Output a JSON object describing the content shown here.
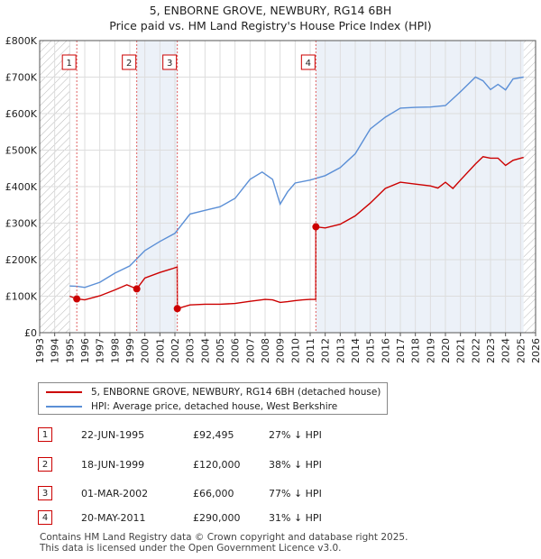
{
  "title_line1": "5, ENBORNE GROVE, NEWBURY, RG14 6BH",
  "title_line2": "Price paid vs. HM Land Registry's House Price Index (HPI)",
  "colors": {
    "property": "#cc0000",
    "hpi": "#5b8fd6",
    "grid": "#dddddd",
    "shade": "#dde6f3"
  },
  "legend": {
    "property_label": "5, ENBORNE GROVE, NEWBURY, RG14 6BH (detached house)",
    "hpi_label": "HPI: Average price, detached house, West Berkshire"
  },
  "transactions": [
    {
      "n": "1",
      "date": "22-JUN-1995",
      "price": "£92,495",
      "pct": "27% ↓ HPI"
    },
    {
      "n": "2",
      "date": "18-JUN-1999",
      "price": "£120,000",
      "pct": "38% ↓ HPI"
    },
    {
      "n": "3",
      "date": "01-MAR-2002",
      "price": "£66,000",
      "pct": "77% ↓ HPI"
    },
    {
      "n": "4",
      "date": "20-MAY-2011",
      "price": "£290,000",
      "pct": "31% ↓ HPI"
    }
  ],
  "footer": {
    "line1": "Contains HM Land Registry data © Crown copyright and database right 2025.",
    "line2": "This data is licensed under the Open Government Licence v3.0."
  },
  "chart_data": {
    "type": "line",
    "title": "Price paid vs. HM Land Registry's House Price Index (HPI)",
    "x_range": [
      1993,
      2026
    ],
    "ylim": [
      0,
      800000
    ],
    "y_ticks": [
      0,
      100000,
      200000,
      300000,
      400000,
      500000,
      600000,
      700000,
      800000
    ],
    "y_tick_labels": [
      "£0",
      "£100K",
      "£200K",
      "£300K",
      "£400K",
      "£500K",
      "£600K",
      "£700K",
      "£800K"
    ],
    "x_ticks": [
      1993,
      1994,
      1995,
      1996,
      1997,
      1998,
      1999,
      2000,
      2001,
      2002,
      2003,
      2004,
      2005,
      2006,
      2007,
      2008,
      2009,
      2010,
      2011,
      2012,
      2013,
      2014,
      2015,
      2016,
      2017,
      2018,
      2019,
      2020,
      2021,
      2022,
      2023,
      2024,
      2025,
      2026
    ],
    "x_tick_labels": [
      "1993",
      "1994",
      "1995",
      "1996",
      "1997",
      "1998",
      "1999",
      "2000",
      "2001",
      "2002",
      "2003",
      "2004",
      "2005",
      "2006",
      "2007",
      "2008",
      "2009",
      "2010",
      "2011",
      "2012",
      "2013",
      "2014",
      "2015",
      "2016",
      "2017",
      "2018",
      "2019",
      "2020",
      "2021",
      "2022",
      "2023",
      "2024",
      "2025",
      "2026"
    ],
    "hatched_before": 1995.0,
    "hatched_after": 2025.2,
    "sales": [
      {
        "n": "1",
        "x": 1995.47,
        "y": 92495
      },
      {
        "n": "2",
        "x": 1999.46,
        "y": 120000
      },
      {
        "n": "3",
        "x": 2002.16,
        "y": 66000
      },
      {
        "n": "4",
        "x": 2011.38,
        "y": 290000
      }
    ],
    "series": [
      {
        "name": "5, ENBORNE GROVE, NEWBURY, RG14 6BH (detached house)",
        "x": [
          1995.0,
          1995.47,
          1996,
          1997,
          1998,
          1998.8,
          1999.46,
          2000,
          2001,
          2001.8,
          2002.15,
          2002.16,
          2003,
          2004,
          2005,
          2006,
          2007,
          2008,
          2008.5,
          2009,
          2009.5,
          2010,
          2010.5,
          2011,
          2011.37,
          2011.38,
          2012,
          2013,
          2014,
          2015,
          2016,
          2017,
          2018,
          2019,
          2019.5,
          2020,
          2020.5,
          2021,
          2022,
          2022.5,
          2023,
          2023.5,
          2024,
          2024.5,
          2025.2
        ],
        "y": [
          100000,
          92495,
          90000,
          101000,
          117000,
          131000,
          120000,
          150000,
          165000,
          175000,
          180000,
          66000,
          76000,
          78000,
          78000,
          80000,
          86000,
          91000,
          90000,
          83000,
          85000,
          88000,
          90000,
          91000,
          91000,
          290000,
          287000,
          297000,
          320000,
          355000,
          395000,
          412000,
          407000,
          402000,
          396000,
          412000,
          395000,
          418000,
          462000,
          482000,
          478000,
          478000,
          458000,
          472000,
          480000
        ]
      },
      {
        "name": "HPI: Average price, detached house, West Berkshire",
        "x": [
          1995.0,
          1995.5,
          1996,
          1997,
          1998,
          1999,
          2000,
          2001,
          2002,
          2003,
          2004,
          2005,
          2006,
          2007,
          2007.8,
          2008.5,
          2009,
          2009.5,
          2010,
          2011,
          2012,
          2013,
          2014,
          2015,
          2016,
          2017,
          2018,
          2019,
          2020,
          2021,
          2022,
          2022.5,
          2023,
          2023.5,
          2024,
          2024.5,
          2025.2
        ],
        "y": [
          128000,
          127000,
          124000,
          138000,
          163000,
          183000,
          225000,
          250000,
          272000,
          325000,
          335000,
          345000,
          368000,
          420000,
          440000,
          420000,
          352000,
          386000,
          410000,
          418000,
          430000,
          452000,
          490000,
          558000,
          590000,
          615000,
          617000,
          618000,
          622000,
          660000,
          700000,
          690000,
          666000,
          680000,
          665000,
          695000,
          700000
        ]
      }
    ]
  }
}
